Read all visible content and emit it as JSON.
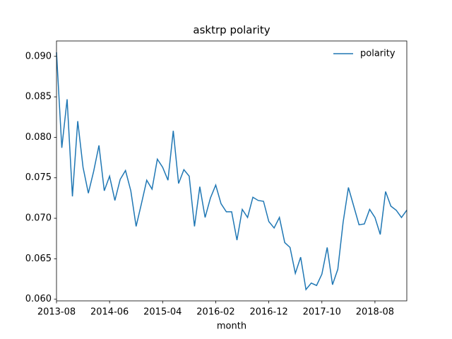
{
  "chart_data": {
    "type": "line",
    "title": "asktrp polarity",
    "xlabel": "month",
    "x": [
      "2013-08",
      "2013-09",
      "2013-10",
      "2013-11",
      "2013-12",
      "2014-01",
      "2014-02",
      "2014-03",
      "2014-04",
      "2014-05",
      "2014-06",
      "2014-07",
      "2014-08",
      "2014-09",
      "2014-10",
      "2014-11",
      "2014-12",
      "2015-01",
      "2015-02",
      "2015-03",
      "2015-04",
      "2015-05",
      "2015-06",
      "2015-07",
      "2015-08",
      "2015-09",
      "2015-10",
      "2015-11",
      "2015-12",
      "2016-01",
      "2016-02",
      "2016-03",
      "2016-04",
      "2016-05",
      "2016-06",
      "2016-07",
      "2016-08",
      "2016-09",
      "2016-10",
      "2016-11",
      "2016-12",
      "2017-01",
      "2017-02",
      "2017-03",
      "2017-04",
      "2017-05",
      "2017-06",
      "2017-07",
      "2017-08",
      "2017-09",
      "2017-10",
      "2017-11",
      "2017-12",
      "2018-01",
      "2018-02",
      "2018-03",
      "2018-04",
      "2018-05",
      "2018-06",
      "2018-07",
      "2018-08",
      "2018-09",
      "2018-10",
      "2018-11",
      "2018-12",
      "2019-01",
      "2019-02"
    ],
    "series": [
      {
        "name": "polarity",
        "color": "#1f77b4",
        "values": [
          0.0905,
          0.0787,
          0.0847,
          0.0727,
          0.082,
          0.0763,
          0.0731,
          0.0758,
          0.079,
          0.0734,
          0.0752,
          0.0722,
          0.0748,
          0.0759,
          0.0734,
          0.069,
          0.0718,
          0.0747,
          0.0736,
          0.0773,
          0.0763,
          0.0747,
          0.0808,
          0.0743,
          0.076,
          0.0752,
          0.069,
          0.0739,
          0.0701,
          0.0725,
          0.0741,
          0.0718,
          0.0708,
          0.0708,
          0.0673,
          0.0711,
          0.0701,
          0.0726,
          0.0722,
          0.0721,
          0.0696,
          0.0688,
          0.0701,
          0.067,
          0.0664,
          0.0632,
          0.0652,
          0.0612,
          0.062,
          0.0617,
          0.0631,
          0.0664,
          0.0618,
          0.0637,
          0.0695,
          0.0738,
          0.0715,
          0.0692,
          0.0693,
          0.0711,
          0.0701,
          0.068,
          0.0733,
          0.0715,
          0.071,
          0.0701,
          0.071
        ]
      }
    ],
    "xticks": [
      "2013-08",
      "2014-06",
      "2015-04",
      "2016-02",
      "2016-12",
      "2017-10",
      "2018-08"
    ],
    "ylim": [
      0.0598,
      0.0919
    ],
    "yticks": [
      {
        "value": 0.06,
        "label": "0.060"
      },
      {
        "value": 0.065,
        "label": "0.065"
      },
      {
        "value": 0.07,
        "label": "0.070"
      },
      {
        "value": 0.075,
        "label": "0.075"
      },
      {
        "value": 0.08,
        "label": "0.080"
      },
      {
        "value": 0.085,
        "label": "0.085"
      },
      {
        "value": 0.09,
        "label": "0.090"
      }
    ],
    "legend": "upper right",
    "grid": false
  }
}
